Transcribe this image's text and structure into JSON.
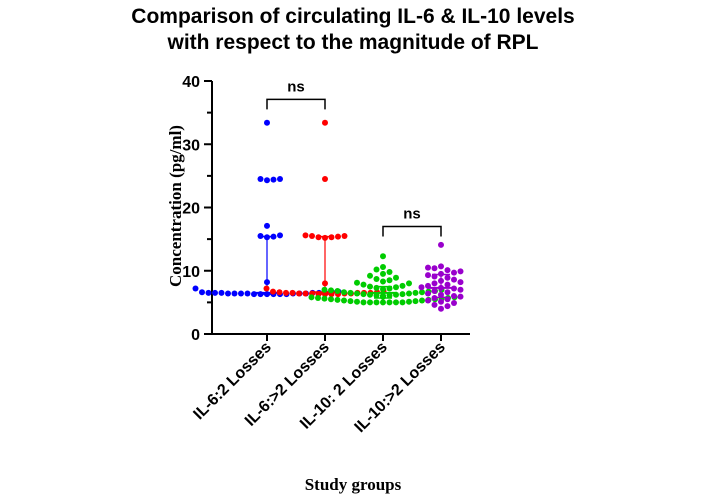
{
  "chart_data": {
    "type": "scatter",
    "title_line1": "Comparison of circulating IL-6 & IL-10 levels",
    "title_line2": "with respect to the magnitude of RPL",
    "xlabel": "Study groups",
    "ylabel": "Concentration (pg/ml)",
    "ylim": [
      0,
      40
    ],
    "yticks": [
      0,
      10,
      20,
      30,
      40
    ],
    "yminor_step": 5,
    "grid": false,
    "legend": "none",
    "categories": [
      "IL-6:2 Losses",
      "IL-6:>2 Losses",
      "IL-10: 2 Losses",
      "IL-10:>2 Losses"
    ],
    "series": [
      {
        "color": "#0000ff",
        "median": 6.5,
        "q1": 6.3,
        "q3": 15.4,
        "values": [
          33.4,
          24.5,
          24.5,
          24.4,
          24.3,
          17.1,
          15.6,
          15.5,
          15.4,
          15.3,
          8.2,
          7.2,
          6.7,
          6.6,
          6.6,
          6.5,
          6.5,
          6.5,
          6.5,
          6.5,
          6.5,
          6.4,
          6.4,
          6.4,
          6.4,
          6.4,
          6.4,
          6.4,
          6.3,
          6.3,
          6.3,
          6.3,
          6.3,
          6.3
        ]
      },
      {
        "color": "#ff0000",
        "median": 6.6,
        "q1": 6.3,
        "q3": 15.4,
        "values": [
          33.4,
          24.5,
          15.6,
          15.5,
          15.5,
          15.4,
          15.3,
          15.3,
          15.2,
          8.0,
          7.2,
          6.8,
          6.7,
          6.6,
          6.6,
          6.5,
          6.5,
          6.5,
          6.5,
          6.5,
          6.4,
          6.4,
          6.4,
          6.4,
          6.4,
          6.3,
          6.3,
          6.3,
          6.3
        ]
      },
      {
        "color": "#00cc00",
        "median": 6.5,
        "q1": 5.7,
        "q3": 7.5,
        "values": [
          12.3,
          10.6,
          10.2,
          9.8,
          9.5,
          9.2,
          8.9,
          8.7,
          8.5,
          8.3,
          8.1,
          8.0,
          7.8,
          7.6,
          7.5,
          7.4,
          7.3,
          7.2,
          7.1,
          7.0,
          7.0,
          6.9,
          6.8,
          6.8,
          6.7,
          6.6,
          6.6,
          6.5,
          6.5,
          6.4,
          6.4,
          6.3,
          6.3,
          6.2,
          6.2,
          6.1,
          6.1,
          6.0,
          6.0,
          5.9,
          5.9,
          5.8,
          5.8,
          5.7,
          5.7,
          5.6,
          5.6,
          5.5,
          5.5,
          5.4,
          5.4,
          5.3,
          5.3,
          5.2,
          5.2,
          5.1,
          5.1,
          5.0,
          5.0,
          5.0,
          5.0,
          5.0,
          5.0,
          5.0
        ]
      },
      {
        "color": "#9900cc",
        "median": 7.3,
        "q1": 5.8,
        "q3": 9.4,
        "values": [
          14.1,
          10.7,
          10.5,
          10.4,
          10.1,
          9.9,
          9.7,
          9.5,
          9.3,
          9.1,
          8.9,
          8.6,
          8.4,
          8.2,
          8.0,
          7.8,
          7.6,
          7.4,
          7.3,
          7.2,
          7.0,
          6.8,
          6.6,
          6.4,
          6.2,
          6.0,
          5.9,
          5.7,
          5.5,
          5.3,
          5.1,
          4.9,
          4.6,
          4.4,
          4.0
        ]
      }
    ],
    "annotations": [
      {
        "text": "ns",
        "from": 0,
        "to": 1,
        "y": 37.1
      },
      {
        "text": "ns",
        "from": 2,
        "to": 3,
        "y": 17.0
      }
    ]
  }
}
